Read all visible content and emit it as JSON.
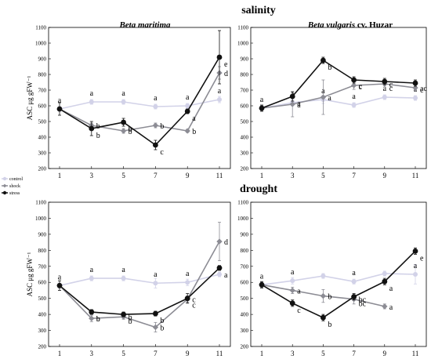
{
  "row_titles": [
    "salinity",
    "drought"
  ],
  "panel_titles": {
    "left_species": "Beta maritima",
    "right_species_italic": "Beta vulgaris",
    "right_cultivar": " cv. Huzar"
  },
  "legend": [
    {
      "label": "control",
      "color": "#d2d2e8",
      "marker": "circle"
    },
    {
      "label": "shock",
      "color": "#8c8c94",
      "marker": "diamond"
    },
    {
      "label": "stress",
      "color": "#111111",
      "marker": "circle"
    }
  ],
  "chart_data": [
    {
      "type": "line",
      "group": "salinity",
      "title": "Beta maritima",
      "ylabel": "ASC μg gFW⁻¹",
      "x": [
        1,
        3,
        5,
        7,
        9,
        11
      ],
      "ylim": [
        200,
        1100
      ],
      "yticks": [
        200,
        300,
        400,
        500,
        600,
        700,
        800,
        900,
        1000,
        1100
      ],
      "series": [
        {
          "name": "control",
          "values": [
            580,
            625,
            625,
            595,
            600,
            640
          ],
          "errors": [
            15,
            15,
            15,
            15,
            15,
            20
          ],
          "labels": [
            "",
            "a",
            "a",
            "a",
            "a",
            "a"
          ]
        },
        {
          "name": "shock",
          "values": [
            580,
            475,
            440,
            475,
            440,
            810
          ],
          "errors": [
            10,
            15,
            15,
            15,
            10,
            40
          ],
          "labels": [
            "",
            "b",
            "b",
            "b",
            "b",
            "d"
          ]
        },
        {
          "name": "stress",
          "values": [
            580,
            455,
            495,
            350,
            565,
            910
          ],
          "errors": [
            40,
            45,
            25,
            30,
            15,
            170
          ],
          "labels": [
            "a",
            "b",
            "b",
            "c",
            "a",
            "e"
          ]
        }
      ]
    },
    {
      "type": "line",
      "group": "salinity",
      "title": "Beta vulgaris cv. Huzar",
      "ylabel": "",
      "x": [
        1,
        3,
        5,
        7,
        9,
        11
      ],
      "ylim": [
        200,
        1100
      ],
      "yticks": [
        200,
        300,
        400,
        500,
        600,
        700,
        800,
        900,
        1000,
        1100
      ],
      "series": [
        {
          "name": "control",
          "values": [
            585,
            620,
            640,
            605,
            655,
            650
          ],
          "errors": [
            15,
            20,
            25,
            15,
            15,
            15
          ],
          "labels": [
            "",
            "a",
            "a",
            "a",
            "a",
            "a"
          ]
        },
        {
          "name": "shock",
          "values": [
            585,
            610,
            655,
            730,
            740,
            715
          ],
          "errors": [
            15,
            80,
            110,
            25,
            20,
            20
          ],
          "labels": [
            "",
            "a",
            "a",
            "c",
            "c",
            "ac"
          ]
        },
        {
          "name": "stress",
          "values": [
            585,
            660,
            890,
            765,
            755,
            745
          ],
          "errors": [
            20,
            30,
            20,
            20,
            20,
            20
          ],
          "labels": [
            "a",
            "a",
            "b",
            "c",
            "c",
            "c"
          ]
        }
      ]
    },
    {
      "type": "line",
      "group": "drought",
      "title": "",
      "ylabel": "ASC μg gFW⁻¹",
      "x": [
        1,
        3,
        5,
        7,
        9,
        11
      ],
      "ylim": [
        200,
        1100
      ],
      "yticks": [
        200,
        300,
        400,
        500,
        600,
        700,
        800,
        900,
        1000,
        1100
      ],
      "series": [
        {
          "name": "control",
          "values": [
            580,
            625,
            625,
            595,
            600,
            650
          ],
          "errors": [
            15,
            15,
            15,
            30,
            20,
            15
          ],
          "labels": [
            "",
            "a",
            "a",
            "a",
            "a",
            ""
          ]
        },
        {
          "name": "shock",
          "values": [
            580,
            375,
            385,
            320,
            495,
            855
          ],
          "errors": [
            10,
            20,
            15,
            30,
            20,
            120
          ],
          "labels": [
            "",
            "b",
            "b",
            "b",
            "c",
            "d"
          ]
        },
        {
          "name": "stress",
          "values": [
            580,
            415,
            400,
            405,
            500,
            690
          ],
          "errors": [
            30,
            15,
            15,
            15,
            30,
            15
          ],
          "labels": [
            "a",
            "b",
            "b",
            "b",
            "c",
            "a"
          ]
        }
      ]
    },
    {
      "type": "line",
      "group": "drought",
      "title": "",
      "ylabel": "",
      "x": [
        1,
        3,
        5,
        7,
        9,
        11
      ],
      "ylim": [
        200,
        1100
      ],
      "yticks": [
        200,
        300,
        400,
        500,
        600,
        700,
        800,
        900,
        1000,
        1100
      ],
      "series": [
        {
          "name": "control",
          "values": [
            585,
            610,
            640,
            605,
            655,
            650
          ],
          "errors": [
            15,
            20,
            15,
            15,
            15,
            60
          ],
          "labels": [
            "",
            "a",
            "",
            "a",
            "",
            "a"
          ]
        },
        {
          "name": "shock",
          "values": [
            585,
            550,
            515,
            495,
            450,
            null
          ],
          "errors": [
            15,
            20,
            40,
            30,
            15,
            null
          ],
          "labels": [
            "",
            "a",
            "b",
            "bc",
            "a",
            ""
          ]
        },
        {
          "name": "stress",
          "values": [
            585,
            470,
            380,
            510,
            605,
            795
          ],
          "errors": [
            20,
            20,
            20,
            20,
            20,
            20
          ],
          "labels": [
            "a",
            "c",
            "b",
            "bc",
            "a",
            "e"
          ]
        }
      ]
    }
  ]
}
